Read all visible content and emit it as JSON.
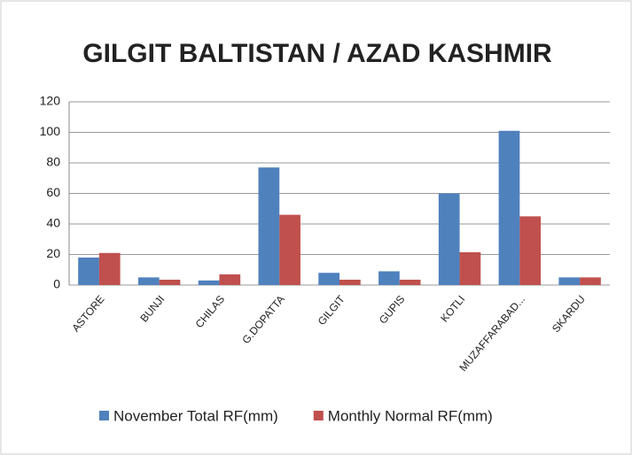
{
  "chart_data": {
    "type": "bar",
    "title": "GILGIT BALTISTAN / AZAD KASHMIR",
    "categories": [
      "ASTORE",
      "BUNJI",
      "CHILAS",
      "G.DOPATTA",
      "GILGIT",
      "GUPIS",
      "KOTLI",
      "MUZAFFARABAD...",
      "SKARDU"
    ],
    "series": [
      {
        "name": "November Total RF(mm)",
        "color": "#4f81bd",
        "values": [
          18,
          5,
          3,
          77,
          8,
          9,
          60,
          101,
          5
        ]
      },
      {
        "name": "Monthly Normal RF(mm)",
        "color": "#c0504d",
        "values": [
          21,
          3.5,
          7,
          46,
          3.5,
          3.5,
          21.5,
          45,
          5
        ]
      }
    ],
    "ylim": [
      0,
      120
    ],
    "yticks": [
      0,
      20,
      40,
      60,
      80,
      100,
      120
    ],
    "grid": true,
    "legend": "bottom"
  }
}
